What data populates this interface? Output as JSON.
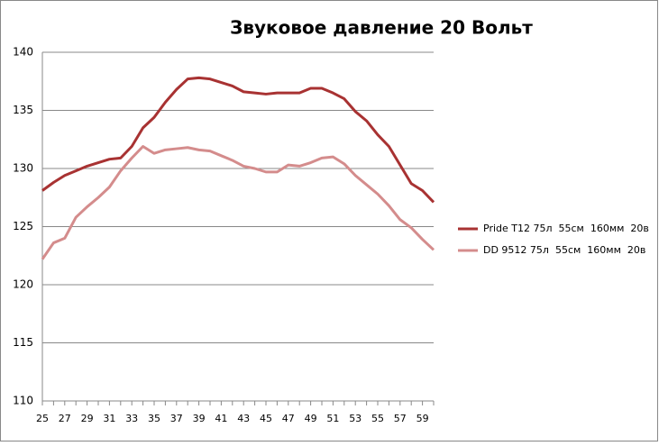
{
  "chart_data": {
    "type": "line",
    "title": "Звуковое давление 20 Вольт",
    "categories": [
      "25",
      null,
      "27",
      null,
      "29",
      null,
      "31",
      null,
      "33",
      null,
      "35",
      null,
      "37",
      null,
      "39",
      null,
      "41",
      null,
      "43",
      null,
      "45",
      null,
      "47",
      null,
      "49",
      null,
      "51",
      null,
      "53",
      null,
      "55",
      null,
      "57",
      null,
      "59",
      null
    ],
    "series": [
      {
        "name": "Pride T12 75л  55см  160мм  20в",
        "color": "#a83232",
        "values": [
          128.1,
          128.8,
          129.4,
          129.8,
          130.2,
          130.5,
          130.8,
          130.9,
          131.9,
          133.5,
          134.4,
          135.7,
          136.8,
          137.7,
          137.8,
          137.7,
          137.4,
          137.1,
          136.6,
          136.5,
          136.4,
          136.5,
          136.5,
          136.5,
          136.9,
          136.9,
          136.5,
          136.0,
          134.9,
          134.1,
          132.9,
          131.9,
          130.3,
          128.7,
          128.1,
          127.1
        ]
      },
      {
        "name": "DD 9512 75л  55см  160мм  20в",
        "color": "#d48c8c",
        "values": [
          122.2,
          123.6,
          124.0,
          125.8,
          126.7,
          127.5,
          128.4,
          129.8,
          130.9,
          131.9,
          131.3,
          131.6,
          131.7,
          131.8,
          131.6,
          131.5,
          131.1,
          130.7,
          130.2,
          130.0,
          129.7,
          129.7,
          130.3,
          130.2,
          130.5,
          130.9,
          131.0,
          130.4,
          129.4,
          128.6,
          127.8,
          126.8,
          125.6,
          124.9,
          123.9,
          123.0
        ]
      }
    ],
    "ylim": [
      110,
      140
    ],
    "yticks": [
      110,
      115,
      120,
      125,
      130,
      135,
      140
    ],
    "grid": true,
    "legend": "right"
  }
}
